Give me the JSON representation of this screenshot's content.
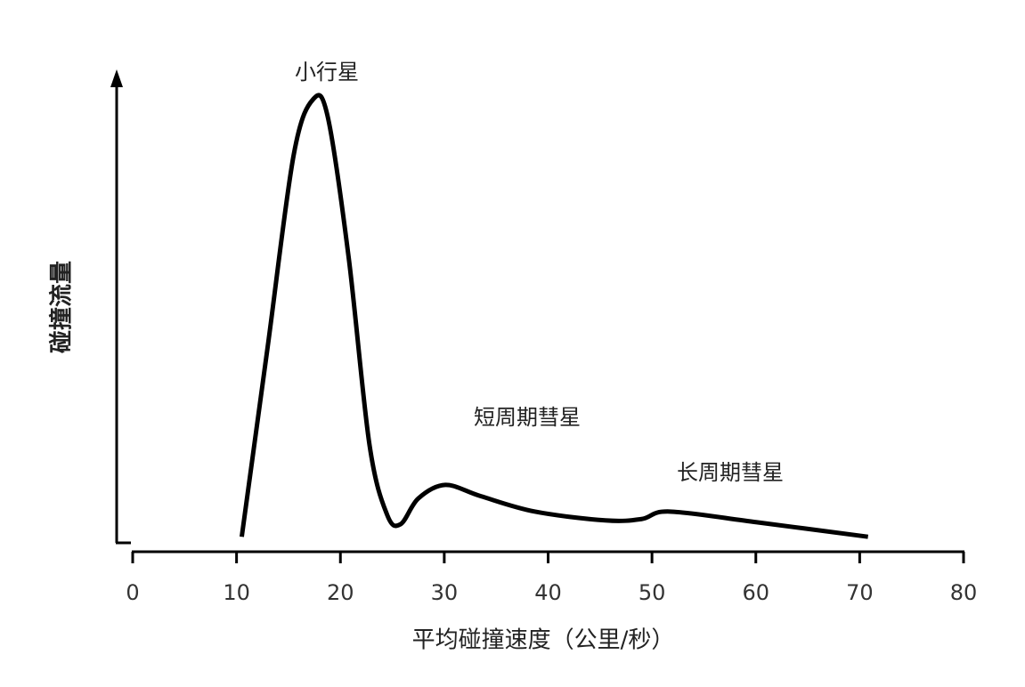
{
  "chart_data": {
    "type": "line",
    "x_label": "平均碰撞速度（公里/秒）",
    "y_label": "碰撞流量",
    "annotations": [
      "小行星",
      "短周期彗星",
      "长周期彗星"
    ],
    "xlim": [
      0,
      80
    ],
    "xticks": [
      0,
      10,
      20,
      30,
      40,
      50,
      60,
      70,
      80
    ],
    "ylim": [
      0,
      100
    ],
    "color": "#000000",
    "x": [
      10.5,
      13,
      15.5,
      17.4,
      18.8,
      20.8,
      22.8,
      24.5,
      25.8,
      27.5,
      30.1,
      33.5,
      38.7,
      45.5,
      49,
      51.7,
      60.1,
      70.8
    ],
    "values": [
      1.3,
      42,
      83,
      95,
      91,
      61,
      21,
      6,
      4,
      9.5,
      12.4,
      10,
      6.7,
      4.8,
      5.1,
      6.7,
      4.4,
      1.3
    ]
  }
}
